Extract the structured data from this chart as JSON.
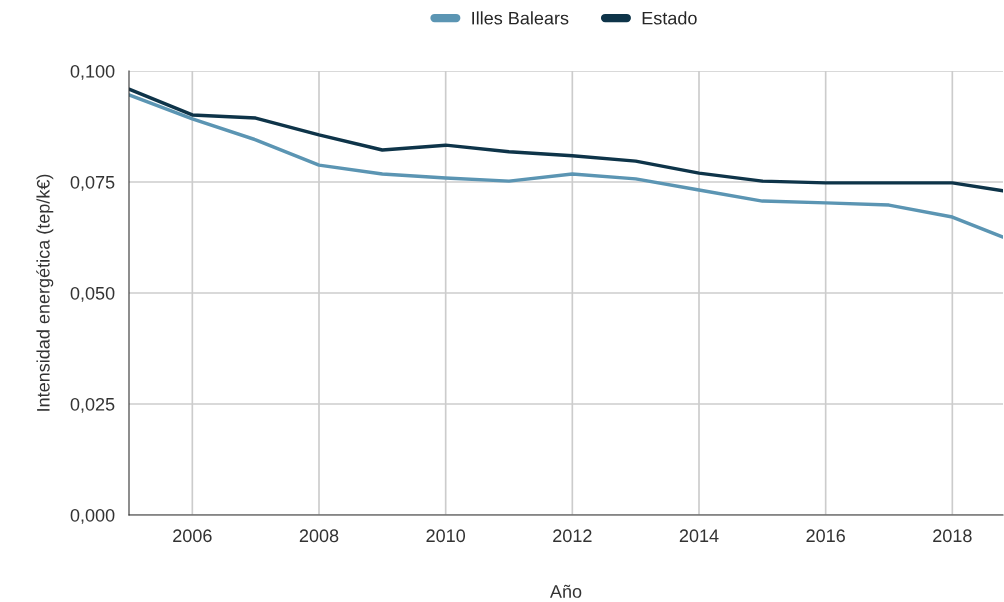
{
  "chart_data": {
    "type": "line",
    "xlabel": "Año",
    "ylabel": "Intensidad energética (tep/k€)",
    "x": [
      2005,
      2006,
      2007,
      2008,
      2009,
      2010,
      2011,
      2012,
      2013,
      2014,
      2015,
      2016,
      2017,
      2018,
      2018.8
    ],
    "series": [
      {
        "name": "Illes Balears",
        "color": "#5b95b3",
        "values": [
          0.0946,
          0.0892,
          0.0845,
          0.0788,
          0.0768,
          0.0759,
          0.0752,
          0.0768,
          0.0757,
          0.0732,
          0.0707,
          0.0703,
          0.0698,
          0.0671,
          0.0626
        ]
      },
      {
        "name": "Estado",
        "color": "#0e3449",
        "values": [
          0.0959,
          0.0901,
          0.0894,
          0.0856,
          0.0822,
          0.0833,
          0.0818,
          0.0809,
          0.0797,
          0.077,
          0.0752,
          0.0748,
          0.0748,
          0.0748,
          0.073
        ]
      }
    ],
    "xlim": [
      2005,
      2018.8
    ],
    "xticks": [
      2006,
      2008,
      2010,
      2012,
      2014,
      2016,
      2018
    ],
    "ylim": [
      0,
      0.1
    ],
    "yticks": [
      {
        "value": 0,
        "label": "0,000"
      },
      {
        "value": 0.025,
        "label": "0,025"
      },
      {
        "value": 0.05,
        "label": "0,050"
      },
      {
        "value": 0.075,
        "label": "0,075"
      },
      {
        "value": 0.1,
        "label": "0,100"
      }
    ],
    "grid": true,
    "legend": "top",
    "line_style": "solid",
    "marker": "none"
  }
}
